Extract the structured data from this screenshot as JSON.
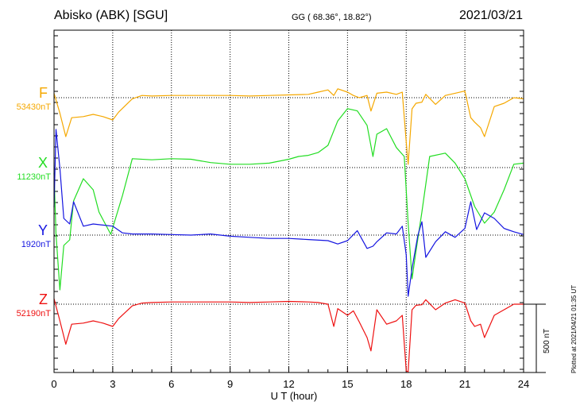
{
  "header": {
    "station": "Abisko (ABK)  [SGU]",
    "coords": "GG ( 68.36°,  18.82°)",
    "date": "2021/03/21"
  },
  "footer": {
    "plotted": "Plotted at 2021/04/21 01:35 UT"
  },
  "chart_data": {
    "type": "line",
    "xlabel": "U T (hour)",
    "xlim": [
      0,
      24
    ],
    "xticks": [
      0,
      3,
      6,
      9,
      12,
      15,
      18,
      21,
      24
    ],
    "scale_label": "500 nT",
    "scale_nT": 500,
    "grid": true,
    "series": [
      {
        "name": "F",
        "baseline_label": "53430nT",
        "baseline_nT": 53430,
        "color": "#f5a800",
        "x": [
          0,
          0.3,
          0.6,
          0.9,
          1.5,
          2.0,
          2.5,
          3.0,
          3.3,
          4.0,
          4.5,
          5.0,
          6.0,
          7.0,
          8.0,
          9.0,
          10.0,
          11.0,
          12.0,
          13.0,
          13.5,
          14.0,
          14.3,
          14.5,
          15.0,
          15.3,
          15.6,
          16.0,
          16.2,
          16.5,
          17.0,
          17.5,
          17.8,
          18.0,
          18.1,
          18.3,
          18.5,
          18.8,
          19.0,
          19.5,
          20.0,
          20.5,
          21.0,
          21.3,
          21.5,
          21.8,
          22.0,
          22.5,
          23.0,
          23.5,
          24.0
        ],
        "y": [
          40,
          -140,
          -350,
          -180,
          -170,
          -150,
          -170,
          -200,
          -130,
          -10,
          20,
          15,
          20,
          20,
          20,
          20,
          15,
          20,
          25,
          30,
          50,
          70,
          20,
          80,
          50,
          20,
          0,
          20,
          -120,
          40,
          50,
          30,
          50,
          -400,
          -600,
          -100,
          -50,
          -40,
          30,
          -60,
          20,
          40,
          60,
          -180,
          -220,
          -270,
          -350,
          -80,
          -50,
          0,
          -10
        ]
      },
      {
        "name": "X",
        "baseline_label": "11230nT",
        "baseline_nT": 11230,
        "color": "#22dd22",
        "x": [
          0,
          0.1,
          0.3,
          0.5,
          0.8,
          1.0,
          1.5,
          2.0,
          2.3,
          2.6,
          2.9,
          3.5,
          4.0,
          5.0,
          6.0,
          7.0,
          8.0,
          9.0,
          10.0,
          11.0,
          12.0,
          12.5,
          13.0,
          13.5,
          14.0,
          14.5,
          15.0,
          15.5,
          16.0,
          16.3,
          16.5,
          17.0,
          17.5,
          17.9,
          18.1,
          18.3,
          18.5,
          18.8,
          19.2,
          20.0,
          20.5,
          21.0,
          21.2,
          21.5,
          22.0,
          22.5,
          23.0,
          23.5,
          24.0
        ],
        "y": [
          -50,
          -600,
          -1100,
          -700,
          -650,
          -300,
          -100,
          -200,
          -400,
          -500,
          -600,
          -250,
          80,
          70,
          80,
          75,
          45,
          30,
          30,
          40,
          75,
          100,
          110,
          135,
          200,
          420,
          530,
          510,
          380,
          100,
          300,
          350,
          180,
          100,
          -500,
          -1000,
          -750,
          -400,
          100,
          130,
          40,
          -100,
          -200,
          -350,
          -500,
          -400,
          -200,
          30,
          40
        ]
      },
      {
        "name": "Y",
        "baseline_label": "1920nT",
        "baseline_nT": 1920,
        "color": "#1515e0",
        "x": [
          0,
          0.1,
          0.3,
          0.5,
          0.8,
          1.0,
          1.5,
          2.0,
          2.5,
          3.0,
          3.5,
          4.0,
          5.0,
          6.0,
          7.0,
          8.0,
          9.0,
          10.0,
          11.0,
          12.0,
          13.0,
          14.0,
          14.5,
          15.0,
          15.5,
          16.0,
          16.3,
          16.5,
          17.0,
          17.5,
          17.8,
          18.0,
          18.1,
          18.3,
          18.6,
          18.8,
          19.0,
          19.5,
          20.0,
          20.5,
          21.0,
          21.3,
          21.6,
          22.0,
          22.5,
          23.0,
          23.5,
          24.0
        ],
        "y": [
          250,
          950,
          600,
          150,
          100,
          300,
          80,
          100,
          90,
          80,
          20,
          10,
          10,
          5,
          0,
          10,
          -10,
          -20,
          -30,
          -30,
          -40,
          -50,
          -80,
          -50,
          40,
          -120,
          -100,
          -60,
          20,
          10,
          80,
          -180,
          -550,
          -300,
          0,
          120,
          -200,
          -60,
          30,
          -20,
          60,
          300,
          50,
          200,
          150,
          60,
          30,
          5
        ]
      },
      {
        "name": "Z",
        "baseline_label": "52190nT",
        "baseline_nT": 52190,
        "color": "#ee1111",
        "x": [
          0,
          0.3,
          0.6,
          0.9,
          1.5,
          2.0,
          2.5,
          3.0,
          3.3,
          4.0,
          4.5,
          5.0,
          6.0,
          7.0,
          8.0,
          9.0,
          10.0,
          11.0,
          12.0,
          13.0,
          13.5,
          14.0,
          14.3,
          14.5,
          15.0,
          15.3,
          15.6,
          16.0,
          16.2,
          16.5,
          17.0,
          17.5,
          17.8,
          18.0,
          18.1,
          18.3,
          18.5,
          18.8,
          19.0,
          19.5,
          20.0,
          20.5,
          21.0,
          21.3,
          21.5,
          21.8,
          22.0,
          22.5,
          23.0,
          23.5,
          24.0
        ],
        "y": [
          50,
          -150,
          -360,
          -180,
          -170,
          -150,
          -170,
          -200,
          -130,
          -15,
          10,
          15,
          20,
          20,
          20,
          20,
          15,
          20,
          25,
          20,
          15,
          0,
          -200,
          -40,
          -100,
          -60,
          -160,
          -300,
          -420,
          -50,
          -180,
          -150,
          -100,
          -600,
          -700,
          -50,
          -10,
          -5,
          40,
          -50,
          10,
          40,
          10,
          -150,
          -200,
          -180,
          -300,
          -100,
          -50,
          0,
          0
        ]
      }
    ]
  }
}
